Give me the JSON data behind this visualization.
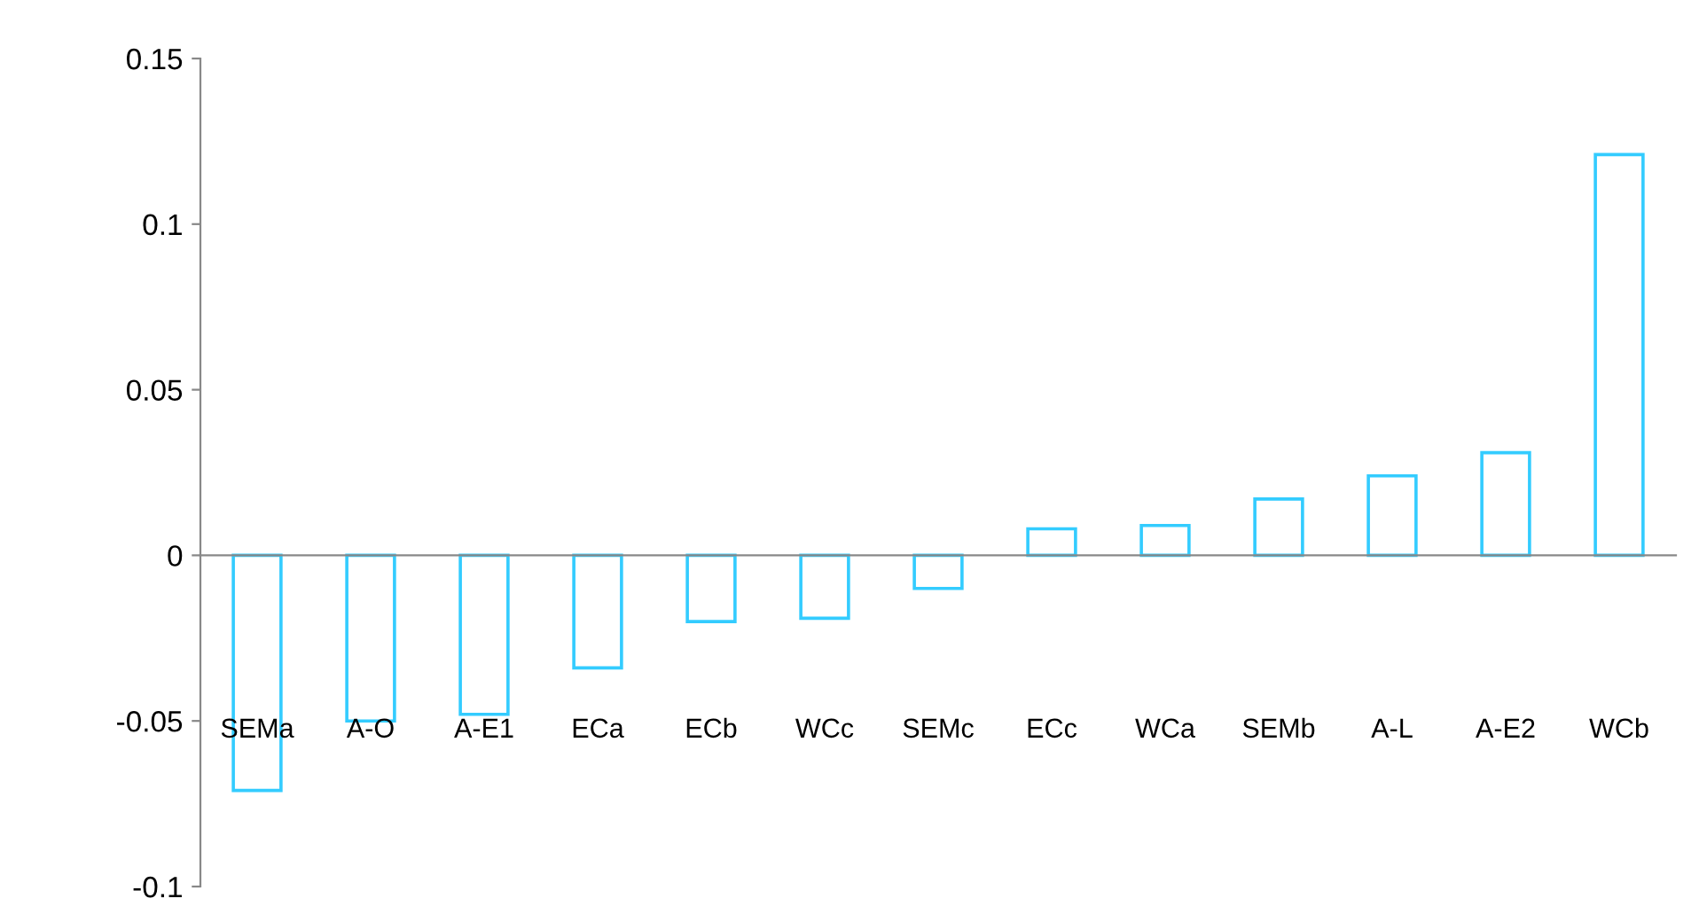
{
  "chart_data": {
    "type": "bar",
    "categories": [
      "SEMa",
      "A-O",
      "A-E1",
      "ECa",
      "ECb",
      "WCc",
      "SEMc",
      "ECc",
      "WCa",
      "SEMb",
      "A-L",
      "A-E2",
      "WCb"
    ],
    "values": [
      -0.071,
      -0.05,
      -0.048,
      -0.034,
      -0.02,
      -0.019,
      -0.01,
      0.008,
      0.009,
      0.017,
      0.024,
      0.031,
      0.121
    ],
    "color": "#33ccff",
    "ylim": [
      -0.1,
      0.15
    ],
    "yticks": [
      -0.1,
      -0.05,
      0,
      0.05,
      0.1,
      0.15
    ]
  }
}
